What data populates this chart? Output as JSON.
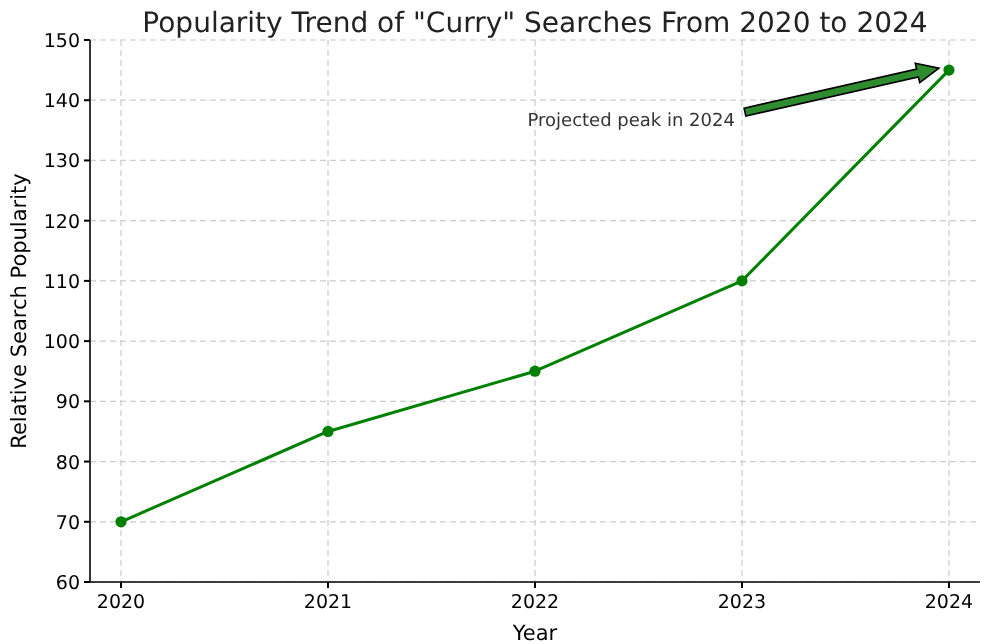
{
  "chart_data": {
    "type": "line",
    "title": "Popularity Trend of \"Curry\" Searches From 2020 to 2024",
    "xlabel": "Year",
    "ylabel": "Relative Search Popularity",
    "x": [
      2020,
      2021,
      2022,
      2023,
      2024
    ],
    "series": [
      {
        "color": "#008000",
        "values": [
          70,
          85,
          95,
          110,
          145
        ]
      }
    ],
    "xlim": [
      2019.85,
      2024.15
    ],
    "xticks": [
      2020,
      2021,
      2022,
      2023,
      2024
    ],
    "ylim": [
      60,
      150
    ],
    "yticks": [
      60,
      70,
      80,
      90,
      100,
      110,
      120,
      130,
      140,
      150
    ],
    "grid": true,
    "marker": "circle",
    "line_style": "solid",
    "annotations": [
      "Projected peak in 2024"
    ]
  }
}
